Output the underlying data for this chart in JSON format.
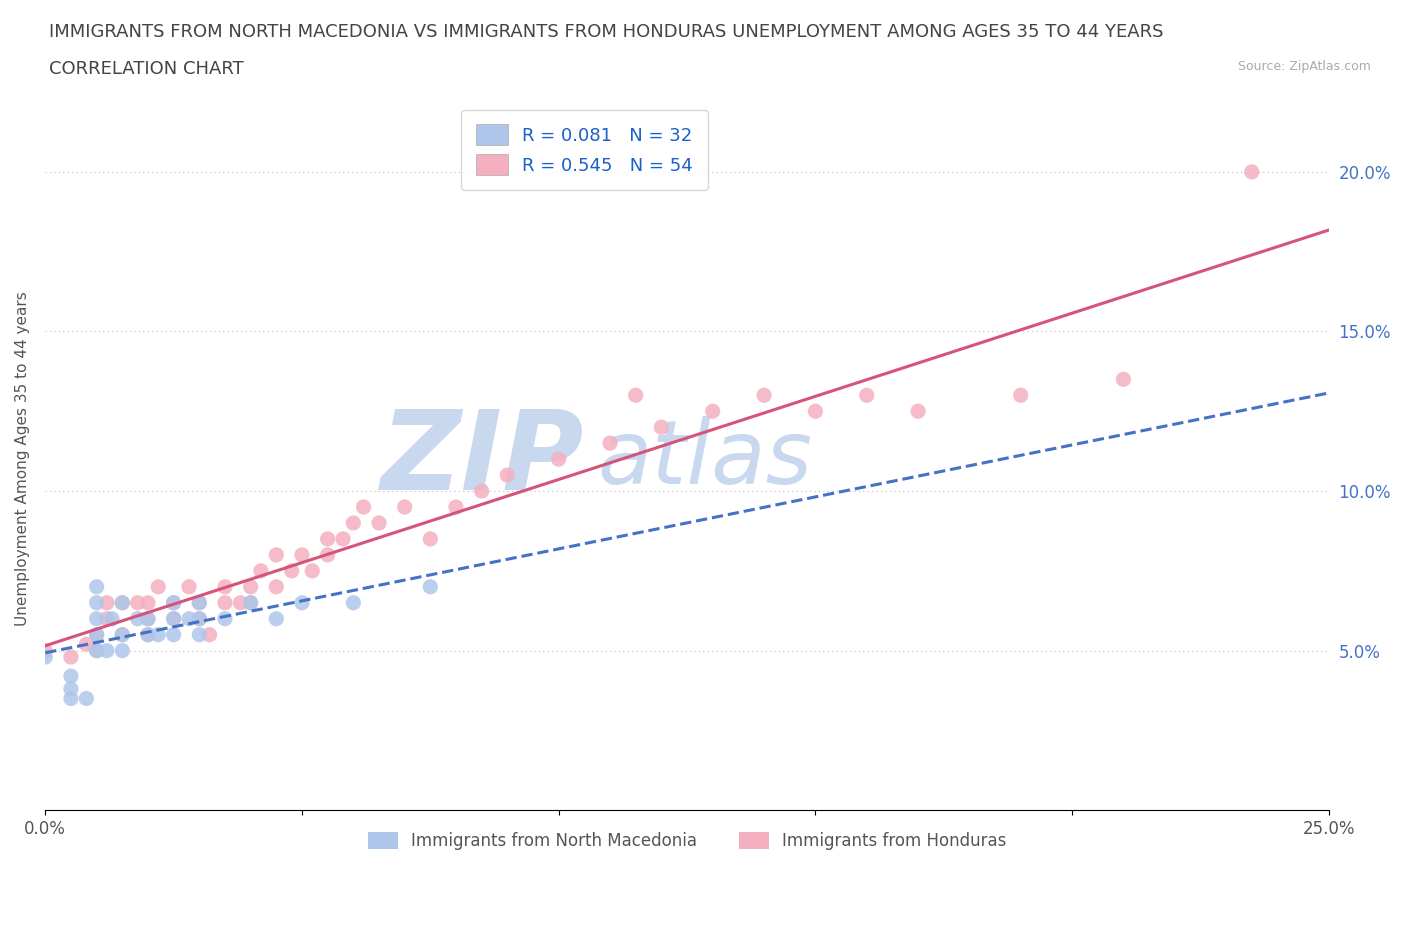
{
  "title_line1": "IMMIGRANTS FROM NORTH MACEDONIA VS IMMIGRANTS FROM HONDURAS UNEMPLOYMENT AMONG AGES 35 TO 44 YEARS",
  "title_line2": "CORRELATION CHART",
  "source_text": "Source: ZipAtlas.com",
  "ylabel": "Unemployment Among Ages 35 to 44 years",
  "xlim": [
    0.0,
    0.25
  ],
  "ylim": [
    0.0,
    0.22
  ],
  "xticks": [
    0.0,
    0.05,
    0.1,
    0.15,
    0.2,
    0.25
  ],
  "xticklabels": [
    "0.0%",
    "",
    "",
    "",
    "",
    "25.0%"
  ],
  "yticks": [
    0.05,
    0.1,
    0.15,
    0.2
  ],
  "yticklabels": [
    "5.0%",
    "10.0%",
    "15.0%",
    "20.0%"
  ],
  "tick_color_y": "#4472c4",
  "tick_color_x": "#555555",
  "macedonia_color": "#aec6ea",
  "honduras_color": "#f4afc0",
  "macedonia_line_color": "#4472c4",
  "honduras_line_color": "#d4547a",
  "r_macedonia": 0.081,
  "n_macedonia": 32,
  "r_honduras": 0.545,
  "n_honduras": 54,
  "legend_label_1": "Immigrants from North Macedonia",
  "legend_label_2": "Immigrants from Honduras",
  "watermark_zip": "ZIP",
  "watermark_atlas": "atlas",
  "watermark_color": "#c8d8ee",
  "title_fontsize": 13,
  "subtitle_fontsize": 13,
  "axis_label_fontsize": 11,
  "tick_fontsize": 12,
  "background_color": "#ffffff",
  "mac_x": [
    0.0,
    0.005,
    0.005,
    0.005,
    0.008,
    0.01,
    0.01,
    0.01,
    0.01,
    0.01,
    0.012,
    0.013,
    0.015,
    0.015,
    0.015,
    0.018,
    0.02,
    0.02,
    0.022,
    0.025,
    0.025,
    0.025,
    0.028,
    0.03,
    0.03,
    0.03,
    0.035,
    0.04,
    0.045,
    0.05,
    0.06,
    0.075
  ],
  "mac_y": [
    0.048,
    0.042,
    0.038,
    0.035,
    0.035,
    0.05,
    0.055,
    0.06,
    0.065,
    0.07,
    0.05,
    0.06,
    0.05,
    0.055,
    0.065,
    0.06,
    0.055,
    0.06,
    0.055,
    0.055,
    0.06,
    0.065,
    0.06,
    0.055,
    0.06,
    0.065,
    0.06,
    0.065,
    0.06,
    0.065,
    0.065,
    0.07
  ],
  "hon_x": [
    0.0,
    0.005,
    0.008,
    0.01,
    0.01,
    0.012,
    0.012,
    0.015,
    0.015,
    0.018,
    0.02,
    0.02,
    0.02,
    0.022,
    0.025,
    0.025,
    0.028,
    0.03,
    0.03,
    0.032,
    0.035,
    0.035,
    0.038,
    0.04,
    0.04,
    0.042,
    0.045,
    0.045,
    0.048,
    0.05,
    0.052,
    0.055,
    0.055,
    0.058,
    0.06,
    0.062,
    0.065,
    0.07,
    0.075,
    0.08,
    0.085,
    0.09,
    0.1,
    0.11,
    0.115,
    0.12,
    0.13,
    0.14,
    0.15,
    0.16,
    0.17,
    0.19,
    0.21,
    0.235
  ],
  "hon_y": [
    0.05,
    0.048,
    0.052,
    0.05,
    0.055,
    0.06,
    0.065,
    0.055,
    0.065,
    0.065,
    0.055,
    0.06,
    0.065,
    0.07,
    0.06,
    0.065,
    0.07,
    0.06,
    0.065,
    0.055,
    0.065,
    0.07,
    0.065,
    0.065,
    0.07,
    0.075,
    0.07,
    0.08,
    0.075,
    0.08,
    0.075,
    0.08,
    0.085,
    0.085,
    0.09,
    0.095,
    0.09,
    0.095,
    0.085,
    0.095,
    0.1,
    0.105,
    0.11,
    0.115,
    0.13,
    0.12,
    0.125,
    0.13,
    0.125,
    0.13,
    0.125,
    0.13,
    0.135,
    0.2
  ]
}
